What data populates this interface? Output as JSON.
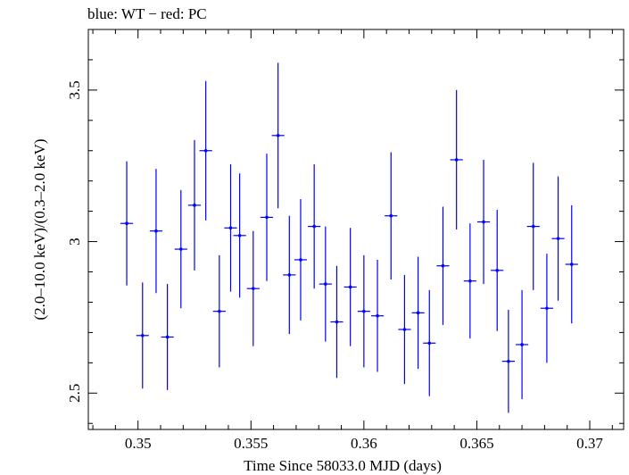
{
  "chart_data": {
    "type": "scatter",
    "title": "blue: WT − red: PC",
    "xlabel": "Time Since 58033.0 MJD (days)",
    "ylabel": "(2.0–10.0 keV)/(0.3–2.0 keV)",
    "xlim": [
      0.3478,
      0.3715
    ],
    "ylim": [
      2.38,
      3.7
    ],
    "x_ticks": [
      "0.35",
      "0.355",
      "0.36",
      "0.365",
      "0.37"
    ],
    "x_tick_values": [
      0.35,
      0.355,
      0.36,
      0.365,
      0.37
    ],
    "y_ticks": [
      "2.5",
      "3",
      "3.5"
    ],
    "y_tick_values": [
      2.5,
      3.0,
      3.5
    ],
    "grid": false,
    "color": "#0000ff",
    "series": [
      {
        "x": [
          0.3495,
          0.3502,
          0.3508,
          0.3513,
          0.3519,
          0.3525,
          0.353,
          0.3536,
          0.3541,
          0.3545,
          0.3551,
          0.3557,
          0.3562,
          0.3567,
          0.3572,
          0.3578,
          0.3583,
          0.3588,
          0.3594,
          0.36,
          0.3606,
          0.3612,
          0.3618,
          0.3624,
          0.3629,
          0.3635,
          0.3641,
          0.3647,
          0.3653,
          0.3659,
          0.3664,
          0.367,
          0.3675,
          0.3681,
          0.3686,
          0.3692
        ],
        "y": [
          3.06,
          2.69,
          3.035,
          2.685,
          2.975,
          3.12,
          3.3,
          2.77,
          3.045,
          3.02,
          2.845,
          3.08,
          3.35,
          2.89,
          2.94,
          3.05,
          2.86,
          2.735,
          2.85,
          2.77,
          2.755,
          3.085,
          2.71,
          2.765,
          2.665,
          2.92,
          3.27,
          2.87,
          3.065,
          2.905,
          2.605,
          2.66,
          3.05,
          2.78,
          3.01,
          2.925
        ],
        "yerr": [
          0.205,
          0.175,
          0.205,
          0.175,
          0.195,
          0.215,
          0.23,
          0.185,
          0.21,
          0.205,
          0.19,
          0.21,
          0.24,
          0.195,
          0.2,
          0.205,
          0.19,
          0.185,
          0.195,
          0.185,
          0.185,
          0.21,
          0.18,
          0.185,
          0.175,
          0.195,
          0.23,
          0.19,
          0.205,
          0.2,
          0.17,
          0.18,
          0.21,
          0.18,
          0.205,
          0.195
        ],
        "xerr": [
          0.00028,
          0.00028,
          0.00028,
          0.00028,
          0.00028,
          0.00028,
          0.00028,
          0.00028,
          0.00028,
          0.00028,
          0.00028,
          0.00028,
          0.00028,
          0.00028,
          0.00028,
          0.00028,
          0.00028,
          0.00028,
          0.00028,
          0.00028,
          0.00028,
          0.00028,
          0.00028,
          0.00028,
          0.00028,
          0.00028,
          0.00028,
          0.00028,
          0.00028,
          0.00028,
          0.00028,
          0.00028,
          0.00028,
          0.00028,
          0.00028,
          0.00028
        ]
      }
    ]
  }
}
